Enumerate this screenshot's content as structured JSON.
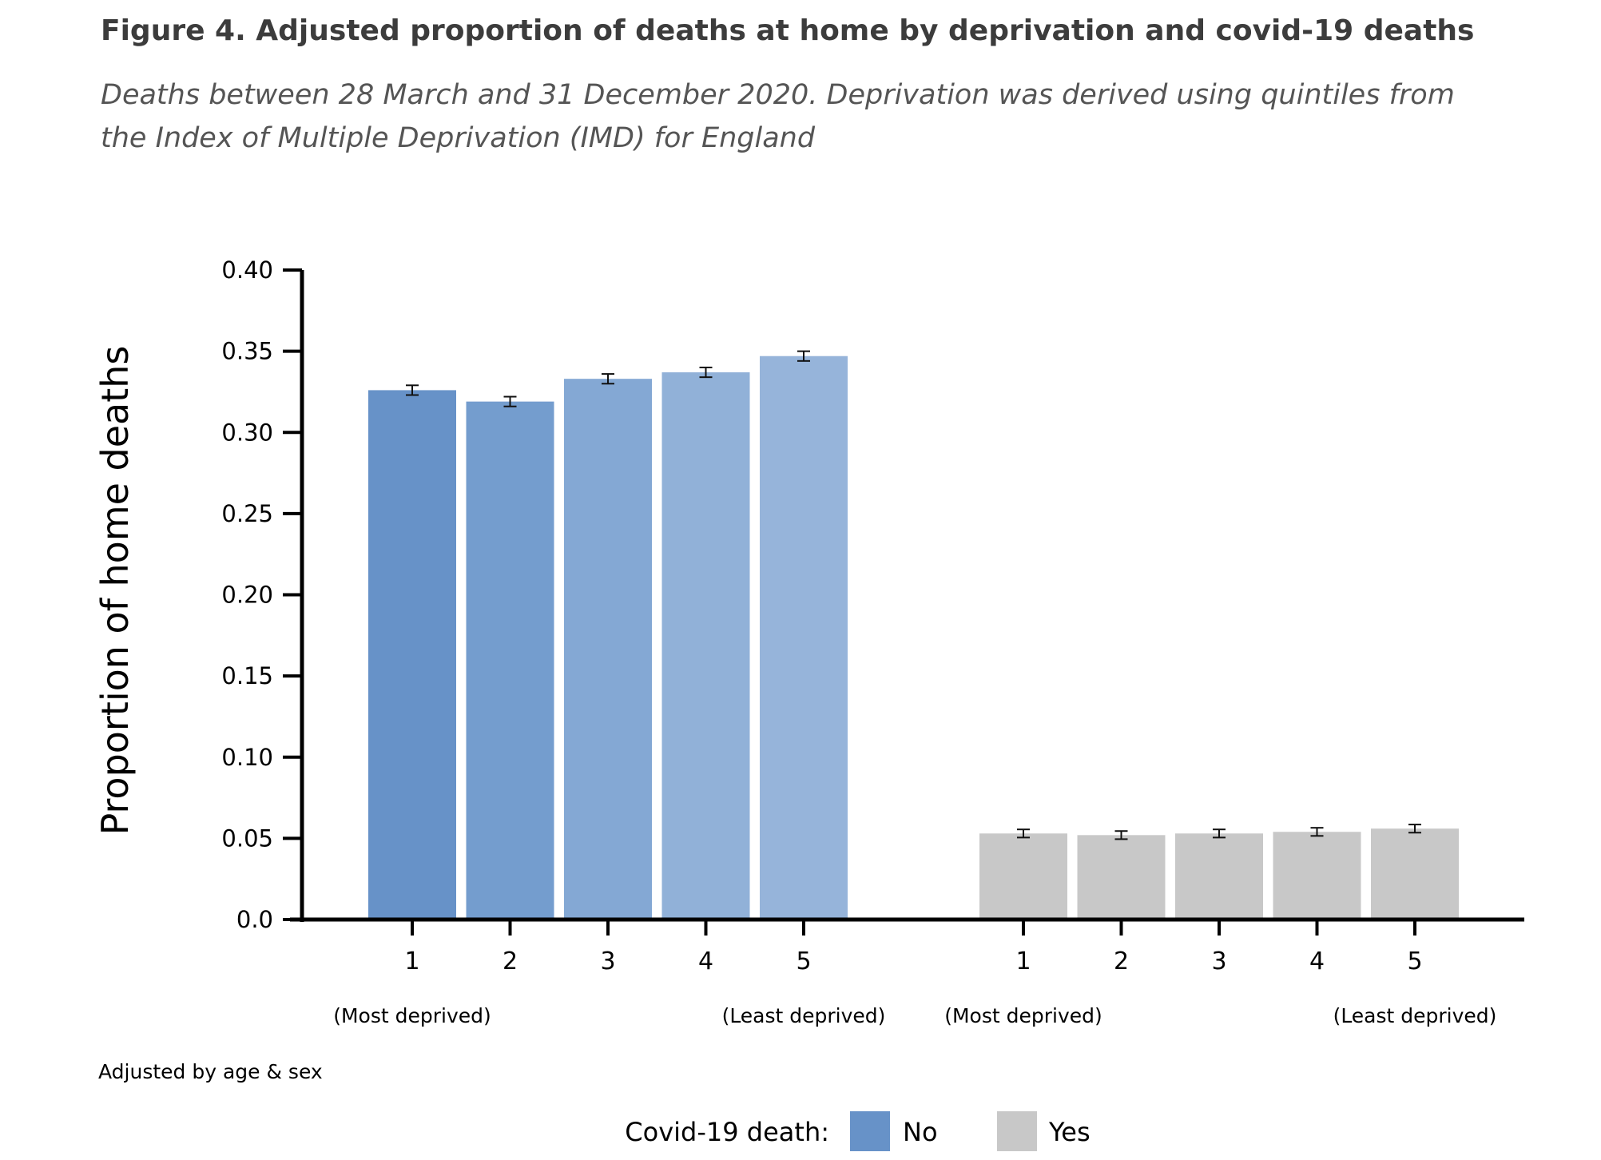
{
  "chart_data": {
    "type": "bar",
    "title": "Figure 4. Adjusted proportion of deaths at home by deprivation and covid-19 deaths",
    "subtitle": "Deaths between 28 March and 31 December 2020. Deprivation was derived using quintiles from the Index of Multiple Deprivation (IMD) for England",
    "ylabel": "Proportion of  home deaths",
    "xlabel": "",
    "ylim": [
      0,
      0.4
    ],
    "yticks": [
      "0.0",
      "0.05",
      "0.10",
      "0.15",
      "0.20",
      "0.25",
      "0.30",
      "0.35",
      "0.40"
    ],
    "grid": false,
    "categories": [
      "1",
      "2",
      "3",
      "4",
      "5"
    ],
    "category_annotations": {
      "first": "(Most deprived)",
      "last": "(Least deprived)"
    },
    "series": [
      {
        "name": "No",
        "color": "#6792c8",
        "bar_colors": [
          "#6792c8",
          "#749dce",
          "#84a8d4",
          "#91b1d8",
          "#96b4da"
        ],
        "values": [
          0.326,
          0.319,
          0.333,
          0.337,
          0.347
        ],
        "error": [
          0.003,
          0.003,
          0.003,
          0.003,
          0.003
        ]
      },
      {
        "name": "Yes",
        "color": "#c8c8c8",
        "bar_colors": [
          "#c8c8c8",
          "#c8c8c8",
          "#c8c8c8",
          "#c8c8c8",
          "#c8c8c8"
        ],
        "values": [
          0.053,
          0.052,
          0.053,
          0.054,
          0.056
        ],
        "error": [
          0.0025,
          0.0025,
          0.0025,
          0.0025,
          0.0025
        ]
      }
    ],
    "note": "Adjusted by age & sex",
    "legend": {
      "title": "Covid-19 death:",
      "position": "bottom"
    }
  }
}
